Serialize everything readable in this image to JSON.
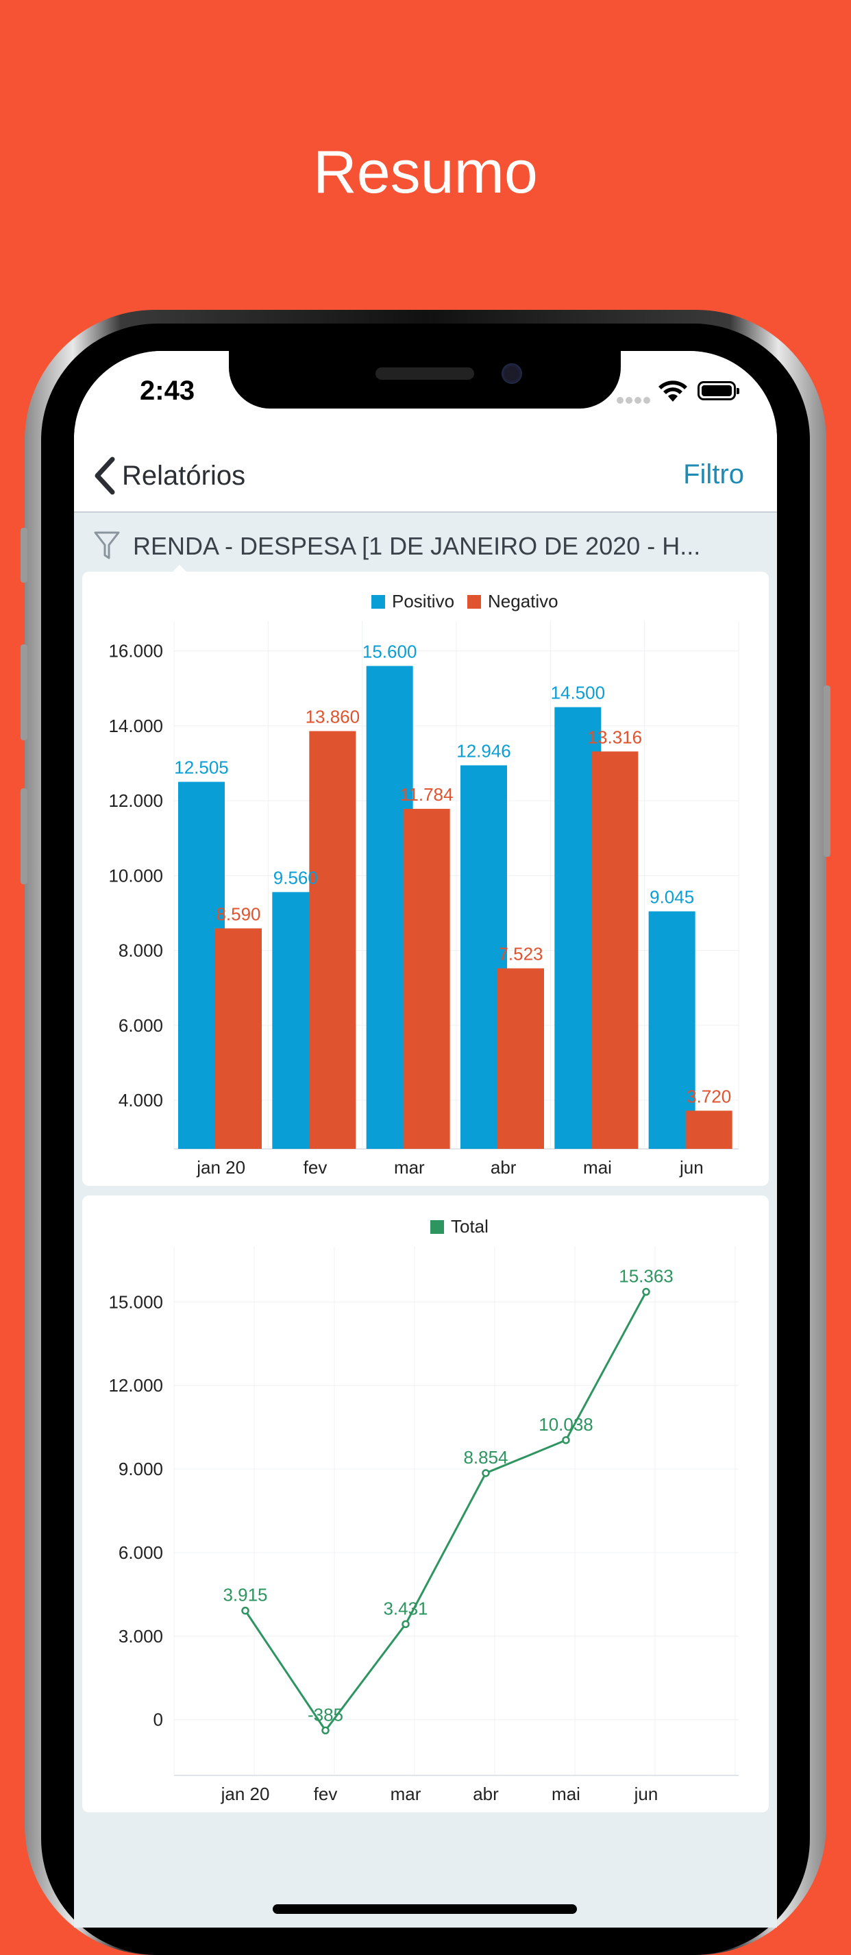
{
  "promo": {
    "title": "Resumo"
  },
  "status_bar": {
    "time": "2:43"
  },
  "nav": {
    "back_label": "Relatórios",
    "filter_label": "Filtro"
  },
  "filter": {
    "text": "RENDA - DESPESA [1 DE JANEIRO DE 2020 - H..."
  },
  "colors": {
    "positive": "#0A9ED6",
    "negative": "#E0532F",
    "total": "#2E9460",
    "accent": "#1F8BB5",
    "background": "#F65335"
  },
  "icons": {
    "back": "chevron-left-icon",
    "filter": "funnel-icon",
    "wifi": "wifi-icon",
    "battery": "battery-icon"
  },
  "chart_data": [
    {
      "type": "bar",
      "categories": [
        "jan 20",
        "fev",
        "mar",
        "abr",
        "mai",
        "jun"
      ],
      "series": [
        {
          "name": "Positivo",
          "values": [
            12505,
            9560,
            15600,
            12946,
            14500,
            9045
          ],
          "labels": [
            "12.505",
            "9.560",
            "15.600",
            "12.946",
            "14.500",
            "9.045"
          ]
        },
        {
          "name": "Negativo",
          "values": [
            8590,
            13860,
            11784,
            7523,
            13316,
            3720
          ],
          "labels": [
            "8.590",
            "13.860",
            "11.784",
            "7.523",
            "13.316",
            "3.720"
          ]
        }
      ],
      "ylim": [
        2700,
        16800
      ],
      "yticks": [
        4000,
        6000,
        8000,
        10000,
        12000,
        14000,
        16000
      ],
      "ytick_labels": [
        "4.000",
        "6.000",
        "8.000",
        "10.000",
        "12.000",
        "14.000",
        "16.000"
      ],
      "legend": "top-center",
      "grid": true
    },
    {
      "type": "line",
      "categories": [
        "jan 20",
        "fev",
        "mar",
        "abr",
        "mai",
        "jun"
      ],
      "series": [
        {
          "name": "Total",
          "values": [
            3915,
            -385,
            3431,
            8854,
            10038,
            15363
          ],
          "labels": [
            "3.915",
            "-385",
            "3.431",
            "8.854",
            "10.038",
            "15.363"
          ]
        }
      ],
      "ylim": [
        -2000,
        17000
      ],
      "yticks": [
        0,
        3000,
        6000,
        9000,
        12000,
        15000
      ],
      "ytick_labels": [
        "0",
        "3.000",
        "6.000",
        "9.000",
        "12.000",
        "15.000"
      ],
      "legend": "top-center",
      "grid": true
    }
  ]
}
